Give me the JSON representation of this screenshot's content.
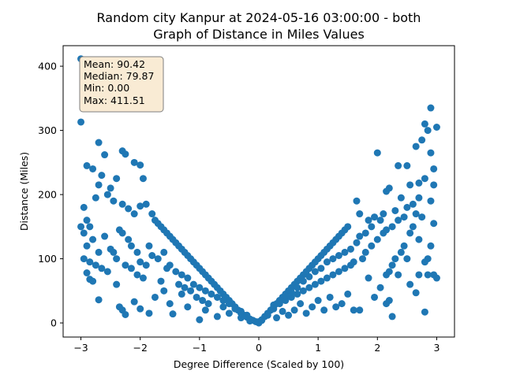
{
  "chart_data": {
    "type": "scatter",
    "title_line1": "Random city Kanpur at 2024-05-16 03:00:00  - both",
    "title_line2": "Graph of Distance in Miles Values",
    "xlabel": "Degree Difference (Scaled by 100)",
    "ylabel": "Distance (Miles)",
    "xlim": [
      -3.3,
      3.3
    ],
    "ylim": [
      -22,
      432
    ],
    "xticks": [
      -3,
      -2,
      -1,
      0,
      1,
      2,
      3
    ],
    "xtick_labels": [
      "−3",
      "−2",
      "−1",
      "0",
      "1",
      "2",
      "3"
    ],
    "yticks": [
      0,
      100,
      200,
      300,
      400
    ],
    "ytick_labels": [
      "0",
      "100",
      "200",
      "300",
      "400"
    ],
    "grid": false,
    "marker_color": "#1f77b4",
    "stats": {
      "mean": "Mean: 90.42",
      "median": "Median: 79.87",
      "min": "Min: 0.00",
      "max": "Max: 411.51"
    },
    "stats_box": {
      "facecolor": "#f9ebd4",
      "edgecolor": "#7f7f7f"
    },
    "points": [
      [
        -3.0,
        411.5
      ],
      [
        -3.0,
        313
      ],
      [
        -2.7,
        281
      ],
      [
        -2.6,
        262
      ],
      [
        -2.3,
        268
      ],
      [
        -2.25,
        263
      ],
      [
        -2.1,
        250
      ],
      [
        -2.0,
        246
      ],
      [
        -1.95,
        225
      ],
      [
        -2.9,
        245
      ],
      [
        -2.8,
        240
      ],
      [
        -2.65,
        230
      ],
      [
        -2.4,
        225
      ],
      [
        -2.5,
        210
      ],
      [
        -2.55,
        200
      ],
      [
        -2.7,
        215
      ],
      [
        -2.75,
        195
      ],
      [
        -2.45,
        190
      ],
      [
        -2.3,
        185
      ],
      [
        -2.2,
        178
      ],
      [
        -2.1,
        170
      ],
      [
        -2.0,
        182
      ],
      [
        -1.9,
        185
      ],
      [
        -1.8,
        170
      ],
      [
        -1.75,
        160
      ],
      [
        -1.7,
        155
      ],
      [
        -1.65,
        150
      ],
      [
        -1.6,
        145
      ],
      [
        -1.55,
        140
      ],
      [
        -1.5,
        135
      ],
      [
        -1.45,
        130
      ],
      [
        -1.4,
        125
      ],
      [
        -1.35,
        120
      ],
      [
        -1.3,
        115
      ],
      [
        -1.25,
        110
      ],
      [
        -1.2,
        105
      ],
      [
        -1.15,
        100
      ],
      [
        -1.1,
        95
      ],
      [
        -1.05,
        90
      ],
      [
        -1.0,
        85
      ],
      [
        -0.95,
        80
      ],
      [
        -0.9,
        75
      ],
      [
        -0.85,
        70
      ],
      [
        -0.8,
        65
      ],
      [
        -0.75,
        60
      ],
      [
        -0.7,
        55
      ],
      [
        -0.65,
        50
      ],
      [
        -0.6,
        45
      ],
      [
        -0.55,
        40
      ],
      [
        -0.5,
        35
      ],
      [
        -0.45,
        30
      ],
      [
        -0.4,
        25
      ],
      [
        -0.35,
        20
      ],
      [
        -0.3,
        15
      ],
      [
        -0.25,
        12
      ],
      [
        -0.2,
        9
      ],
      [
        -0.15,
        6
      ],
      [
        -0.1,
        4
      ],
      [
        -0.05,
        2
      ],
      [
        0.0,
        0
      ],
      [
        -2.95,
        180
      ],
      [
        -2.9,
        160
      ],
      [
        -2.85,
        150
      ],
      [
        -2.95,
        140
      ],
      [
        -3.0,
        150
      ],
      [
        -2.9,
        120
      ],
      [
        -2.8,
        130
      ],
      [
        -2.7,
        110
      ],
      [
        -2.6,
        135
      ],
      [
        -2.5,
        115
      ],
      [
        -2.4,
        100
      ],
      [
        -2.35,
        145
      ],
      [
        -2.3,
        140
      ],
      [
        -2.2,
        130
      ],
      [
        -2.15,
        120
      ],
      [
        -2.05,
        110
      ],
      [
        -2.0,
        95
      ],
      [
        -1.9,
        90
      ],
      [
        -1.85,
        120
      ],
      [
        -1.8,
        105
      ],
      [
        -1.7,
        100
      ],
      [
        -1.6,
        110
      ],
      [
        -1.5,
        90
      ],
      [
        -1.4,
        80
      ],
      [
        -1.3,
        75
      ],
      [
        -1.2,
        70
      ],
      [
        -1.1,
        60
      ],
      [
        -1.0,
        55
      ],
      [
        -0.9,
        50
      ],
      [
        -0.8,
        45
      ],
      [
        -0.7,
        40
      ],
      [
        -0.6,
        35
      ],
      [
        -0.5,
        30
      ],
      [
        -0.4,
        22
      ],
      [
        -0.3,
        18
      ],
      [
        -0.2,
        12
      ],
      [
        -2.9,
        78
      ],
      [
        -2.85,
        68
      ],
      [
        -2.8,
        65
      ],
      [
        -2.7,
        36
      ],
      [
        -2.4,
        60
      ],
      [
        -2.35,
        25
      ],
      [
        -2.3,
        20
      ],
      [
        -2.25,
        13
      ],
      [
        -2.1,
        33
      ],
      [
        -2.0,
        22
      ],
      [
        -1.85,
        15
      ],
      [
        -1.75,
        40
      ],
      [
        -1.6,
        50
      ],
      [
        -1.5,
        30
      ],
      [
        -1.45,
        14
      ],
      [
        -1.3,
        45
      ],
      [
        -1.2,
        25
      ],
      [
        -1.0,
        5
      ],
      [
        -0.9,
        20
      ],
      [
        -0.7,
        10
      ],
      [
        -0.6,
        25
      ],
      [
        -0.5,
        15
      ],
      [
        -0.3,
        8
      ],
      [
        -0.15,
        3
      ],
      [
        -2.95,
        100
      ],
      [
        -2.85,
        95
      ],
      [
        -2.75,
        90
      ],
      [
        -2.65,
        85
      ],
      [
        -2.55,
        80
      ],
      [
        -2.45,
        110
      ],
      [
        -2.25,
        90
      ],
      [
        -2.15,
        85
      ],
      [
        -2.05,
        75
      ],
      [
        -1.95,
        70
      ],
      [
        -1.65,
        65
      ],
      [
        -1.55,
        85
      ],
      [
        -1.35,
        60
      ],
      [
        -1.25,
        55
      ],
      [
        -1.15,
        50
      ],
      [
        -1.05,
        40
      ],
      [
        -0.95,
        35
      ],
      [
        -0.85,
        30
      ],
      [
        3.0,
        305
      ],
      [
        2.9,
        335
      ],
      [
        2.8,
        310
      ],
      [
        2.85,
        300
      ],
      [
        2.75,
        285
      ],
      [
        2.65,
        275
      ],
      [
        2.9,
        265
      ],
      [
        2.5,
        245
      ],
      [
        2.35,
        245
      ],
      [
        2.95,
        240
      ],
      [
        2.8,
        225
      ],
      [
        2.7,
        218
      ],
      [
        2.95,
        215
      ],
      [
        2.55,
        215
      ],
      [
        2.2,
        210
      ],
      [
        2.15,
        205
      ],
      [
        2.0,
        265
      ],
      [
        2.4,
        195
      ],
      [
        2.7,
        195
      ],
      [
        2.9,
        190
      ],
      [
        2.6,
        185
      ],
      [
        2.5,
        180
      ],
      [
        2.3,
        175
      ],
      [
        2.1,
        170
      ],
      [
        2.05,
        160
      ],
      [
        1.95,
        165
      ],
      [
        1.85,
        160
      ],
      [
        1.7,
        170
      ],
      [
        1.65,
        190
      ],
      [
        1.5,
        150
      ],
      [
        1.45,
        145
      ],
      [
        1.4,
        140
      ],
      [
        1.35,
        135
      ],
      [
        1.3,
        130
      ],
      [
        1.25,
        125
      ],
      [
        1.2,
        120
      ],
      [
        1.15,
        115
      ],
      [
        1.1,
        110
      ],
      [
        1.05,
        105
      ],
      [
        1.0,
        100
      ],
      [
        0.95,
        95
      ],
      [
        0.9,
        90
      ],
      [
        0.85,
        85
      ],
      [
        0.8,
        80
      ],
      [
        0.75,
        75
      ],
      [
        0.7,
        70
      ],
      [
        0.65,
        65
      ],
      [
        0.6,
        60
      ],
      [
        0.55,
        55
      ],
      [
        0.5,
        50
      ],
      [
        0.45,
        45
      ],
      [
        0.4,
        40
      ],
      [
        0.35,
        35
      ],
      [
        0.3,
        30
      ],
      [
        0.25,
        25
      ],
      [
        0.2,
        20
      ],
      [
        0.15,
        15
      ],
      [
        0.1,
        10
      ],
      [
        0.05,
        5
      ],
      [
        0.0,
        2
      ],
      [
        2.95,
        155
      ],
      [
        2.9,
        120
      ],
      [
        2.85,
        100
      ],
      [
        2.8,
        95
      ],
      [
        2.7,
        130
      ],
      [
        2.6,
        150
      ],
      [
        2.55,
        140
      ],
      [
        2.45,
        120
      ],
      [
        2.4,
        110
      ],
      [
        2.3,
        100
      ],
      [
        2.25,
        90
      ],
      [
        2.2,
        80
      ],
      [
        2.15,
        75
      ],
      [
        2.1,
        140
      ],
      [
        2.0,
        130
      ],
      [
        1.9,
        120
      ],
      [
        1.8,
        110
      ],
      [
        1.75,
        100
      ],
      [
        1.6,
        95
      ],
      [
        1.55,
        90
      ],
      [
        1.45,
        85
      ],
      [
        1.35,
        80
      ],
      [
        1.25,
        75
      ],
      [
        1.15,
        70
      ],
      [
        1.05,
        65
      ],
      [
        0.95,
        60
      ],
      [
        0.85,
        55
      ],
      [
        0.75,
        50
      ],
      [
        0.65,
        45
      ],
      [
        0.55,
        40
      ],
      [
        0.45,
        35
      ],
      [
        0.35,
        30
      ],
      [
        0.25,
        22
      ],
      [
        0.15,
        12
      ],
      [
        0.05,
        4
      ],
      [
        3.0,
        70
      ],
      [
        2.95,
        75
      ],
      [
        2.85,
        75
      ],
      [
        2.8,
        17
      ],
      [
        2.7,
        75
      ],
      [
        2.65,
        47
      ],
      [
        2.55,
        60
      ],
      [
        2.5,
        100
      ],
      [
        2.35,
        75
      ],
      [
        2.25,
        10
      ],
      [
        2.2,
        35
      ],
      [
        2.15,
        30
      ],
      [
        2.05,
        55
      ],
      [
        1.95,
        40
      ],
      [
        1.85,
        70
      ],
      [
        1.7,
        20
      ],
      [
        1.6,
        20
      ],
      [
        1.5,
        45
      ],
      [
        1.4,
        30
      ],
      [
        1.3,
        25
      ],
      [
        1.2,
        40
      ],
      [
        1.1,
        20
      ],
      [
        1.0,
        35
      ],
      [
        0.9,
        25
      ],
      [
        0.8,
        15
      ],
      [
        0.7,
        30
      ],
      [
        0.6,
        20
      ],
      [
        0.5,
        12
      ],
      [
        0.4,
        18
      ],
      [
        0.3,
        8
      ],
      [
        2.75,
        165
      ],
      [
        2.65,
        170
      ],
      [
        2.45,
        165
      ],
      [
        2.35,
        160
      ],
      [
        2.25,
        150
      ],
      [
        2.15,
        145
      ],
      [
        1.9,
        150
      ],
      [
        1.8,
        140
      ],
      [
        1.7,
        135
      ],
      [
        1.65,
        125
      ],
      [
        1.55,
        115
      ],
      [
        1.45,
        110
      ],
      [
        1.35,
        105
      ],
      [
        1.25,
        100
      ],
      [
        1.15,
        95
      ],
      [
        1.05,
        85
      ],
      [
        0.95,
        80
      ],
      [
        0.85,
        72
      ],
      [
        0.75,
        65
      ],
      [
        0.65,
        55
      ],
      [
        0.55,
        48
      ],
      [
        0.45,
        42
      ],
      [
        0.35,
        32
      ],
      [
        0.25,
        28
      ]
    ]
  }
}
